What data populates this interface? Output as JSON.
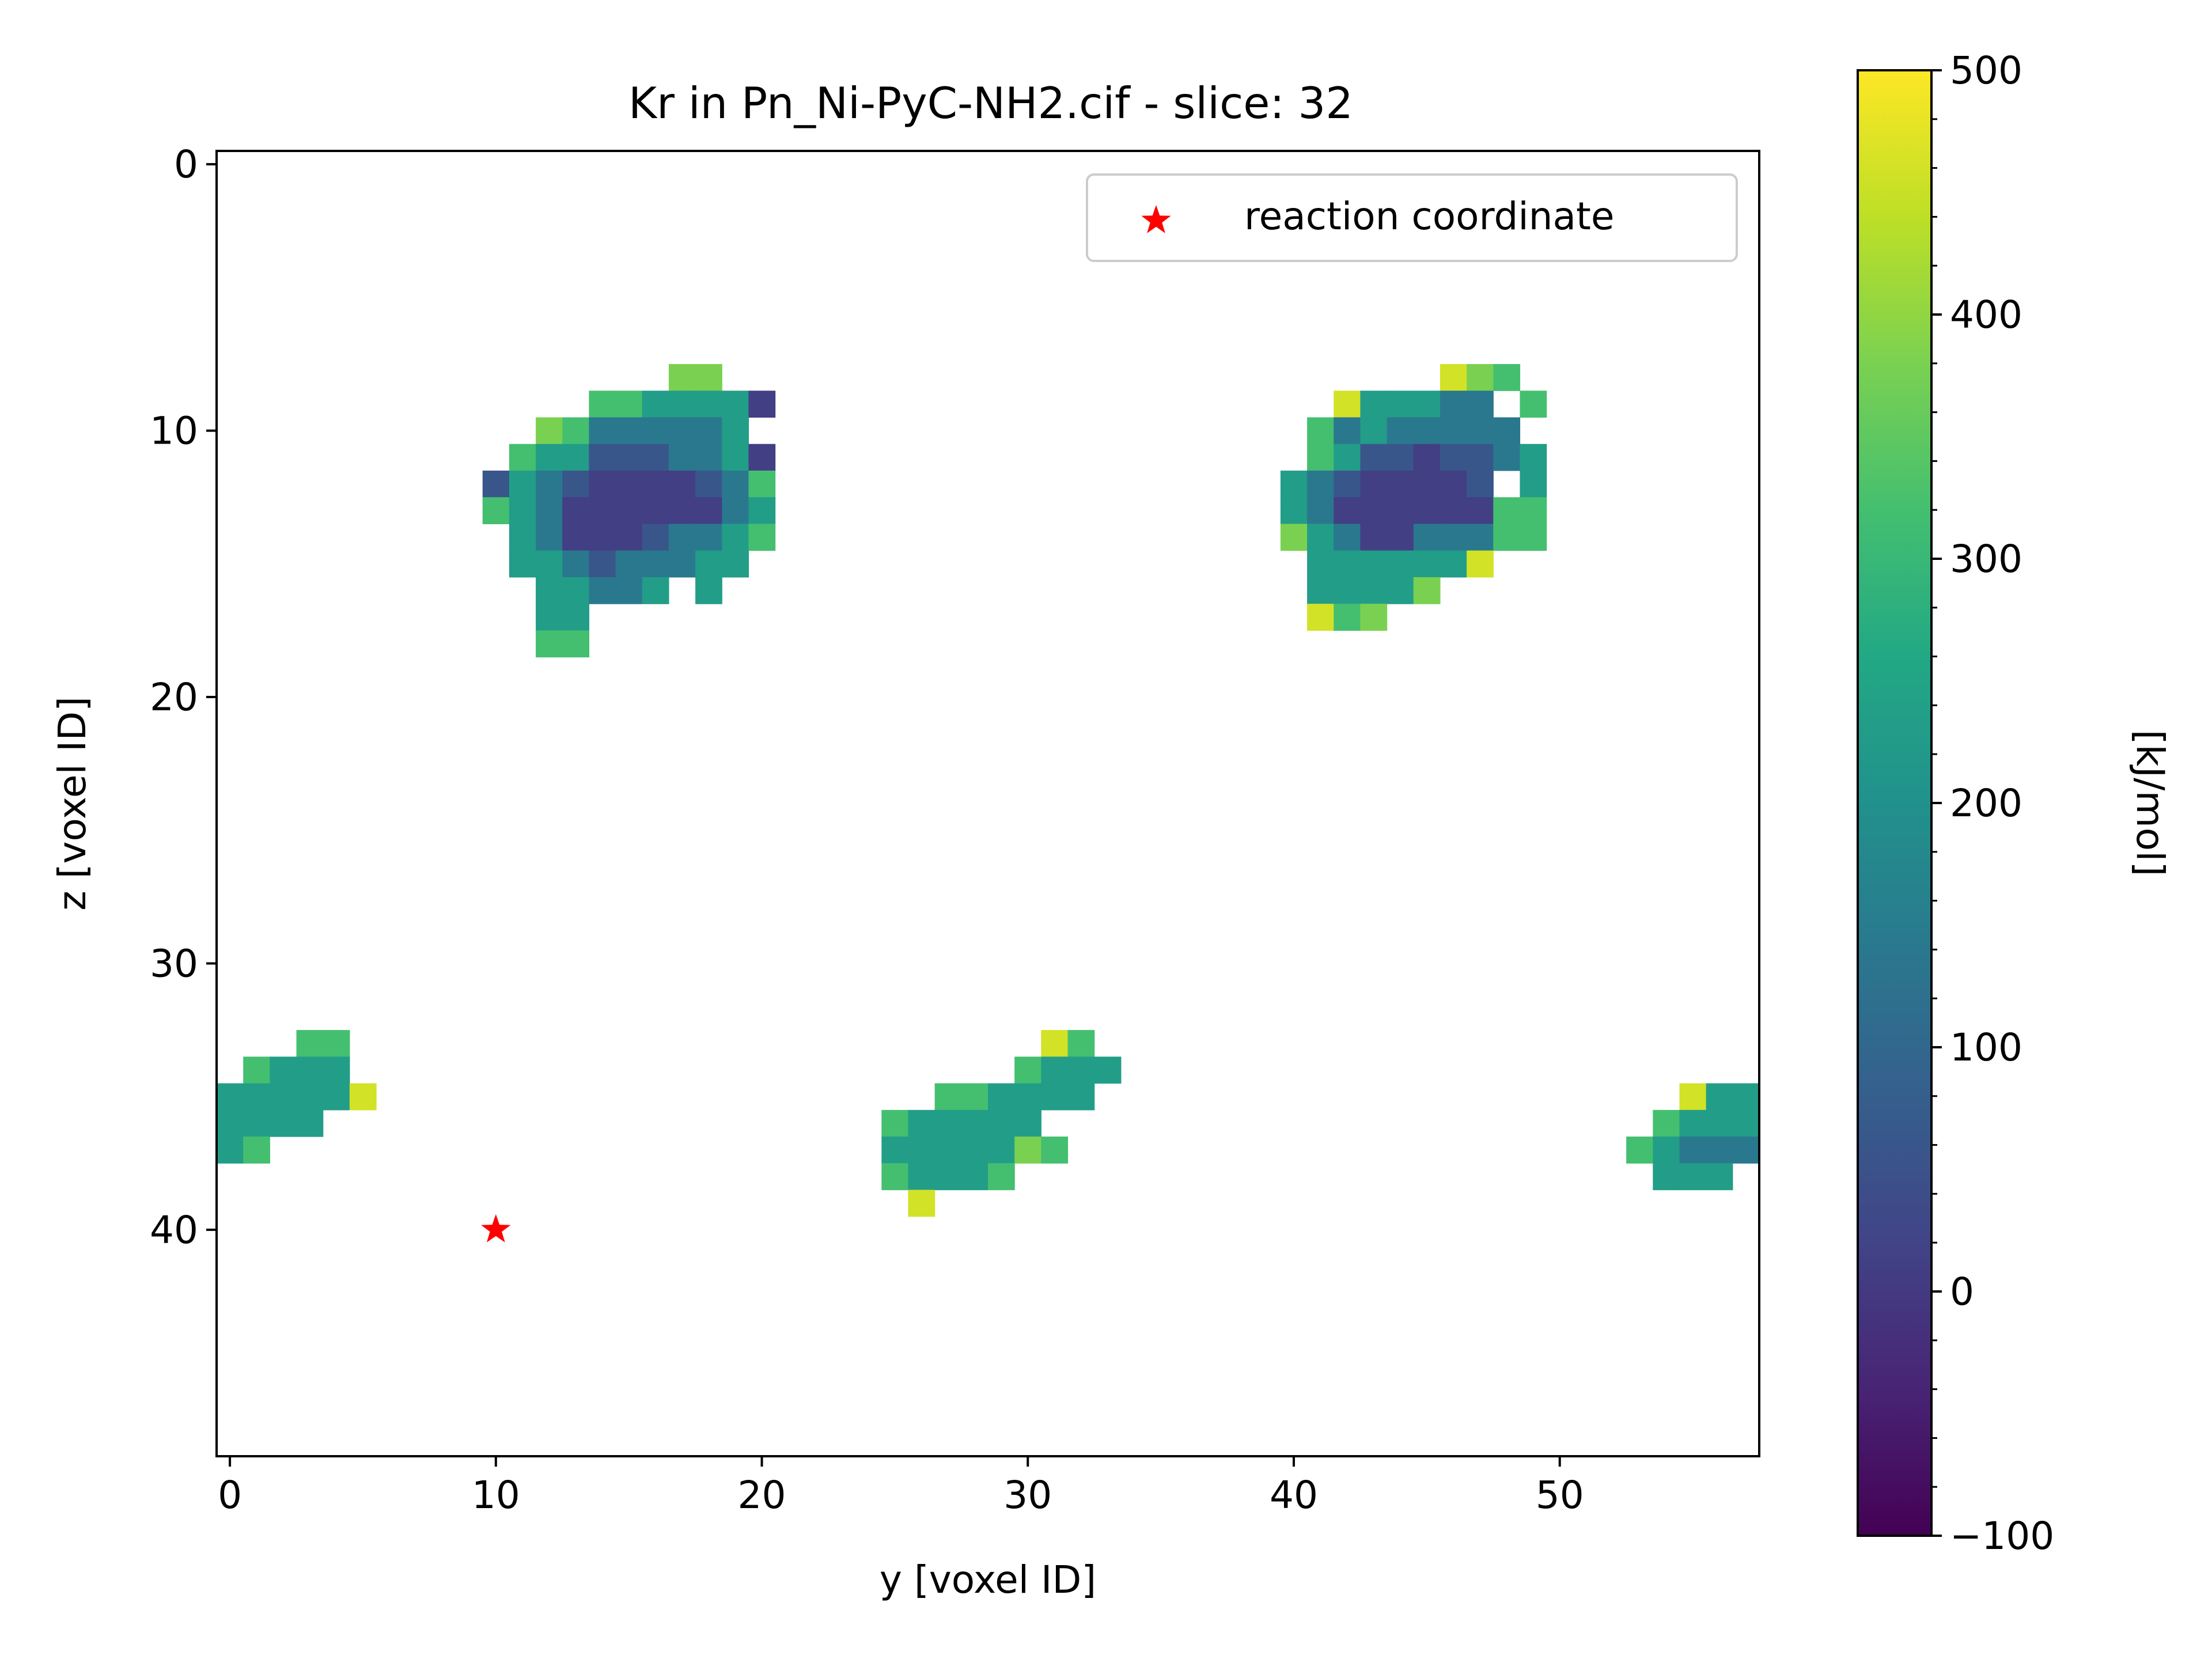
{
  "chart_data": {
    "type": "heatmap",
    "title": "Kr in Pn_Ni-PyC-NH2.cif - slice: 32",
    "xlabel": "y [voxel ID]",
    "ylabel": "z [voxel ID]",
    "xlim": [
      -0.5,
      57.5
    ],
    "ylim": [
      48.5,
      -0.5
    ],
    "x_ticks": [
      0,
      10,
      20,
      30,
      40,
      50
    ],
    "y_ticks": [
      0,
      10,
      20,
      30,
      40
    ],
    "grid": false,
    "colormap": "viridis",
    "colorbar": {
      "label": "[kJ/mol]",
      "range": [
        -100,
        500
      ],
      "ticks": [
        -100,
        0,
        100,
        200,
        300,
        400,
        500
      ],
      "tick_labels": [
        "−100",
        "0",
        "100",
        "200",
        "300",
        "400",
        "500"
      ],
      "minor_step": 20
    },
    "legend": {
      "position": "top-right",
      "entries": [
        "reaction coordinate"
      ]
    },
    "reaction_coordinate": {
      "y": 10,
      "z": 40,
      "marker": "star",
      "color": "#ff0000"
    },
    "pockets": [
      {
        "name": "upper-left",
        "x0": 10,
        "z0": 8,
        "rows": [
          ".......55..",
          "....4433330",
          "..54222223.",
          ".4331112230",
          "13210000124",
          "43200000023",
          ".3200012234",
          ".332122233.",
          "..33223.3..",
          "..33.......",
          "..44......."
        ]
      },
      {
        "name": "upper-right",
        "x0": 39,
        "z0": 8,
        "rows": [
          ".......654.",
          "...633322.4",
          "..42322222.",
          "..431101123",
          ".32100001.3",
          ".3200000044",
          ".5320022244",
          "..3333336..",
          "..33335....",
          "..645......"
        ]
      },
      {
        "name": "lower-left",
        "x0": 0,
        "z0": 33,
        "rows": [
          "...44.",
          ".4333.",
          "333336",
          "3333..",
          "34...."
        ]
      },
      {
        "name": "lower-middle",
        "x0": 25,
        "z0": 33,
        "rows": [
          "......64.",
          ".....4333",
          "..443333.",
          "433333...",
          "3333354..",
          "43334....",
          ".6......."
        ]
      },
      {
        "name": "lower-right",
        "x0": 53,
        "z0": 35,
        "rows": [
          "..633",
          ".4333",
          "43222",
          ".333."
        ]
      }
    ],
    "level_values": [
      10,
      60,
      140,
      230,
      320,
      380,
      460
    ]
  }
}
